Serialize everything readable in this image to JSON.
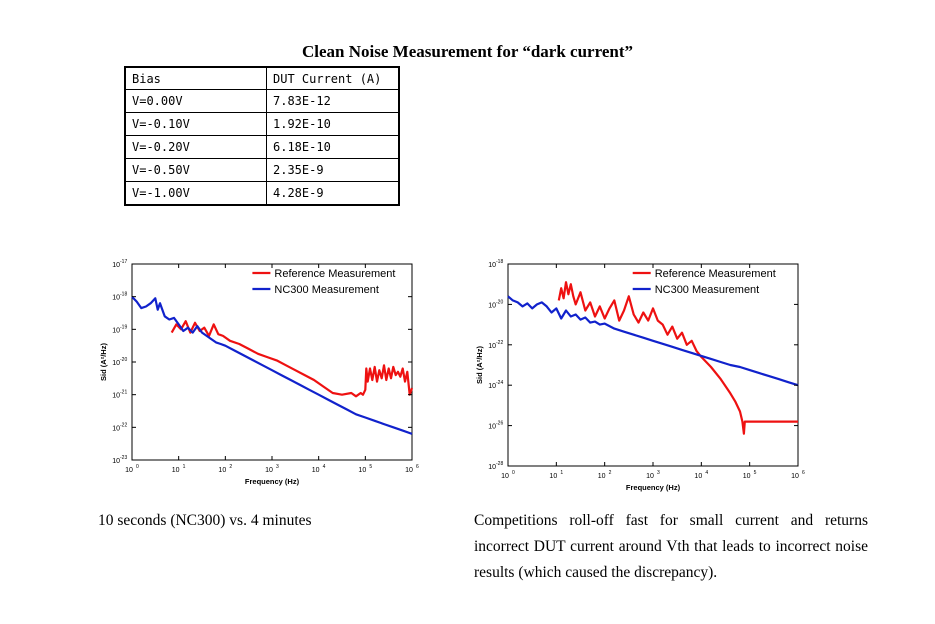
{
  "title": "Clean Noise Measurement for “dark current”",
  "table": {
    "headers": [
      "Bias",
      "DUT Current (A)"
    ],
    "rows": [
      [
        "V=0.00V",
        "7.83E-12"
      ],
      [
        "V=-0.10V",
        "1.92E-10"
      ],
      [
        "V=-0.20V",
        "6.18E-10"
      ],
      [
        "V=-0.50V",
        "2.35E-9"
      ],
      [
        "V=-1.00V",
        "4.28E-9"
      ]
    ]
  },
  "chart_data": [
    {
      "type": "line",
      "xlabel": "Frequency (Hz)",
      "ylabel": "Sid (A²/Hz)",
      "xscale": "log",
      "yscale": "log",
      "xlim_exp": [
        0,
        6
      ],
      "ylim_exp": [
        -23,
        -17
      ],
      "x_ticks": [
        "0",
        "1",
        "2",
        "3",
        "4",
        "5",
        "6"
      ],
      "y_ticks": [
        "-23",
        "-22",
        "-21",
        "-20",
        "-19",
        "-18",
        "-17"
      ],
      "tick_base": "10",
      "legend_position": "top-right",
      "series": [
        {
          "name": "Reference Measurement",
          "color": "#ee1111",
          "log_x": [
            0.85,
            0.95,
            1.05,
            1.15,
            1.25,
            1.35,
            1.45,
            1.55,
            1.65,
            1.75,
            1.85,
            1.95,
            2.1,
            2.3,
            2.5,
            2.7,
            2.9,
            3.1,
            3.3,
            3.5,
            3.7,
            3.9,
            4.1,
            4.3,
            4.5,
            4.7,
            4.8,
            4.9,
            4.95,
            5.0,
            5.02,
            5.05,
            5.1,
            5.15,
            5.2,
            5.25,
            5.3,
            5.35,
            5.4,
            5.45,
            5.5,
            5.55,
            5.6,
            5.65,
            5.7,
            5.75,
            5.8,
            5.85,
            5.9,
            5.95,
            6.0
          ],
          "log_y": [
            -19.1,
            -18.85,
            -19.0,
            -18.75,
            -19.1,
            -18.8,
            -19.05,
            -18.95,
            -19.2,
            -18.85,
            -19.15,
            -19.2,
            -19.35,
            -19.45,
            -19.6,
            -19.75,
            -19.85,
            -19.95,
            -20.1,
            -20.25,
            -20.4,
            -20.55,
            -20.75,
            -20.95,
            -21.0,
            -20.95,
            -21.05,
            -20.95,
            -21.0,
            -20.85,
            -20.2,
            -20.6,
            -20.2,
            -20.55,
            -20.15,
            -20.6,
            -20.25,
            -20.5,
            -20.1,
            -20.55,
            -20.2,
            -20.5,
            -20.15,
            -20.4,
            -20.3,
            -20.45,
            -20.2,
            -20.6,
            -20.3,
            -21.0,
            -20.8
          ]
        },
        {
          "name": "NC300 Measurement",
          "color": "#1122cc",
          "log_x": [
            0.0,
            0.1,
            0.2,
            0.3,
            0.4,
            0.5,
            0.55,
            0.6,
            0.7,
            0.8,
            0.9,
            1.0,
            1.1,
            1.2,
            1.3,
            1.4,
            1.5,
            1.6,
            1.7,
            1.8,
            1.9,
            2.0,
            2.2,
            2.4,
            2.6,
            2.8,
            3.0,
            3.2,
            3.4,
            3.6,
            3.8,
            4.0,
            4.2,
            4.4,
            4.6,
            4.8,
            5.0,
            5.2,
            5.4,
            5.6,
            5.8,
            6.0
          ],
          "log_y": [
            -18.0,
            -18.15,
            -18.35,
            -18.3,
            -18.2,
            -18.05,
            -18.4,
            -18.2,
            -18.6,
            -18.7,
            -18.65,
            -18.85,
            -19.05,
            -18.95,
            -19.1,
            -18.9,
            -19.1,
            -19.2,
            -19.3,
            -19.4,
            -19.45,
            -19.5,
            -19.65,
            -19.8,
            -19.95,
            -20.1,
            -20.25,
            -20.4,
            -20.55,
            -20.7,
            -20.85,
            -21.0,
            -21.15,
            -21.3,
            -21.45,
            -21.6,
            -21.7,
            -21.8,
            -21.9,
            -22.0,
            -22.1,
            -22.2
          ]
        }
      ]
    },
    {
      "type": "line",
      "xlabel": "Frequency (Hz)",
      "ylabel": "Sid (A²/Hz)",
      "xscale": "log",
      "yscale": "log",
      "xlim_exp": [
        0,
        6
      ],
      "ylim_exp": [
        -28,
        -18
      ],
      "x_ticks": [
        "0",
        "1",
        "2",
        "3",
        "4",
        "5",
        "6"
      ],
      "y_ticks": [
        "-28",
        "-26",
        "-24",
        "-22",
        "-20",
        "-18"
      ],
      "tick_base": "10",
      "legend_position": "top-right",
      "series": [
        {
          "name": "Reference Measurement",
          "color": "#ee1111",
          "log_x": [
            1.05,
            1.1,
            1.15,
            1.2,
            1.25,
            1.3,
            1.35,
            1.4,
            1.5,
            1.6,
            1.7,
            1.8,
            1.9,
            2.0,
            2.1,
            2.2,
            2.3,
            2.4,
            2.5,
            2.6,
            2.7,
            2.8,
            2.9,
            3.0,
            3.1,
            3.2,
            3.3,
            3.4,
            3.5,
            3.6,
            3.7,
            3.8,
            3.9,
            4.0,
            4.2,
            4.4,
            4.6,
            4.7,
            4.8,
            4.85,
            4.88,
            4.9,
            5.0,
            5.2,
            5.4,
            5.6,
            5.8,
            6.0
          ],
          "log_y": [
            -19.8,
            -19.2,
            -19.7,
            -18.9,
            -19.5,
            -19.0,
            -19.6,
            -20.0,
            -19.4,
            -20.3,
            -19.9,
            -20.6,
            -20.1,
            -20.7,
            -20.2,
            -19.8,
            -20.8,
            -20.3,
            -19.6,
            -20.5,
            -20.9,
            -20.4,
            -20.8,
            -20.2,
            -20.8,
            -21.0,
            -21.5,
            -21.1,
            -21.7,
            -21.4,
            -22.0,
            -21.8,
            -22.3,
            -22.6,
            -23.1,
            -23.7,
            -24.4,
            -24.8,
            -25.3,
            -25.8,
            -26.4,
            -25.8,
            -25.8,
            -25.8,
            -25.8,
            -25.8,
            -25.8,
            -25.8
          ]
        },
        {
          "name": "NC300 Measurement",
          "color": "#1122cc",
          "log_x": [
            0.0,
            0.1,
            0.2,
            0.3,
            0.4,
            0.5,
            0.6,
            0.7,
            0.8,
            0.9,
            1.0,
            1.1,
            1.2,
            1.3,
            1.4,
            1.5,
            1.6,
            1.7,
            1.8,
            1.9,
            2.0,
            2.2,
            2.4,
            2.6,
            2.8,
            3.0,
            3.2,
            3.4,
            3.6,
            3.8,
            4.0,
            4.2,
            4.4,
            4.6,
            4.8,
            5.0,
            5.2,
            5.4,
            5.6,
            5.8,
            6.0
          ],
          "log_y": [
            -19.6,
            -19.8,
            -19.9,
            -20.1,
            -19.95,
            -20.2,
            -20.0,
            -19.9,
            -20.1,
            -20.4,
            -20.2,
            -20.7,
            -20.3,
            -20.6,
            -20.5,
            -20.75,
            -20.65,
            -20.9,
            -20.85,
            -21.0,
            -20.95,
            -21.2,
            -21.35,
            -21.5,
            -21.65,
            -21.8,
            -21.95,
            -22.1,
            -22.25,
            -22.4,
            -22.55,
            -22.7,
            -22.85,
            -23.0,
            -23.1,
            -23.25,
            -23.4,
            -23.55,
            -23.7,
            -23.85,
            -24.0
          ]
        }
      ]
    }
  ],
  "captions": {
    "left": "10 seconds (NC300) vs. 4 minutes",
    "right": "Competitions roll-off fast for small current and returns incorrect DUT current around Vth that leads to incorrect noise results (which caused the discrepancy)."
  }
}
